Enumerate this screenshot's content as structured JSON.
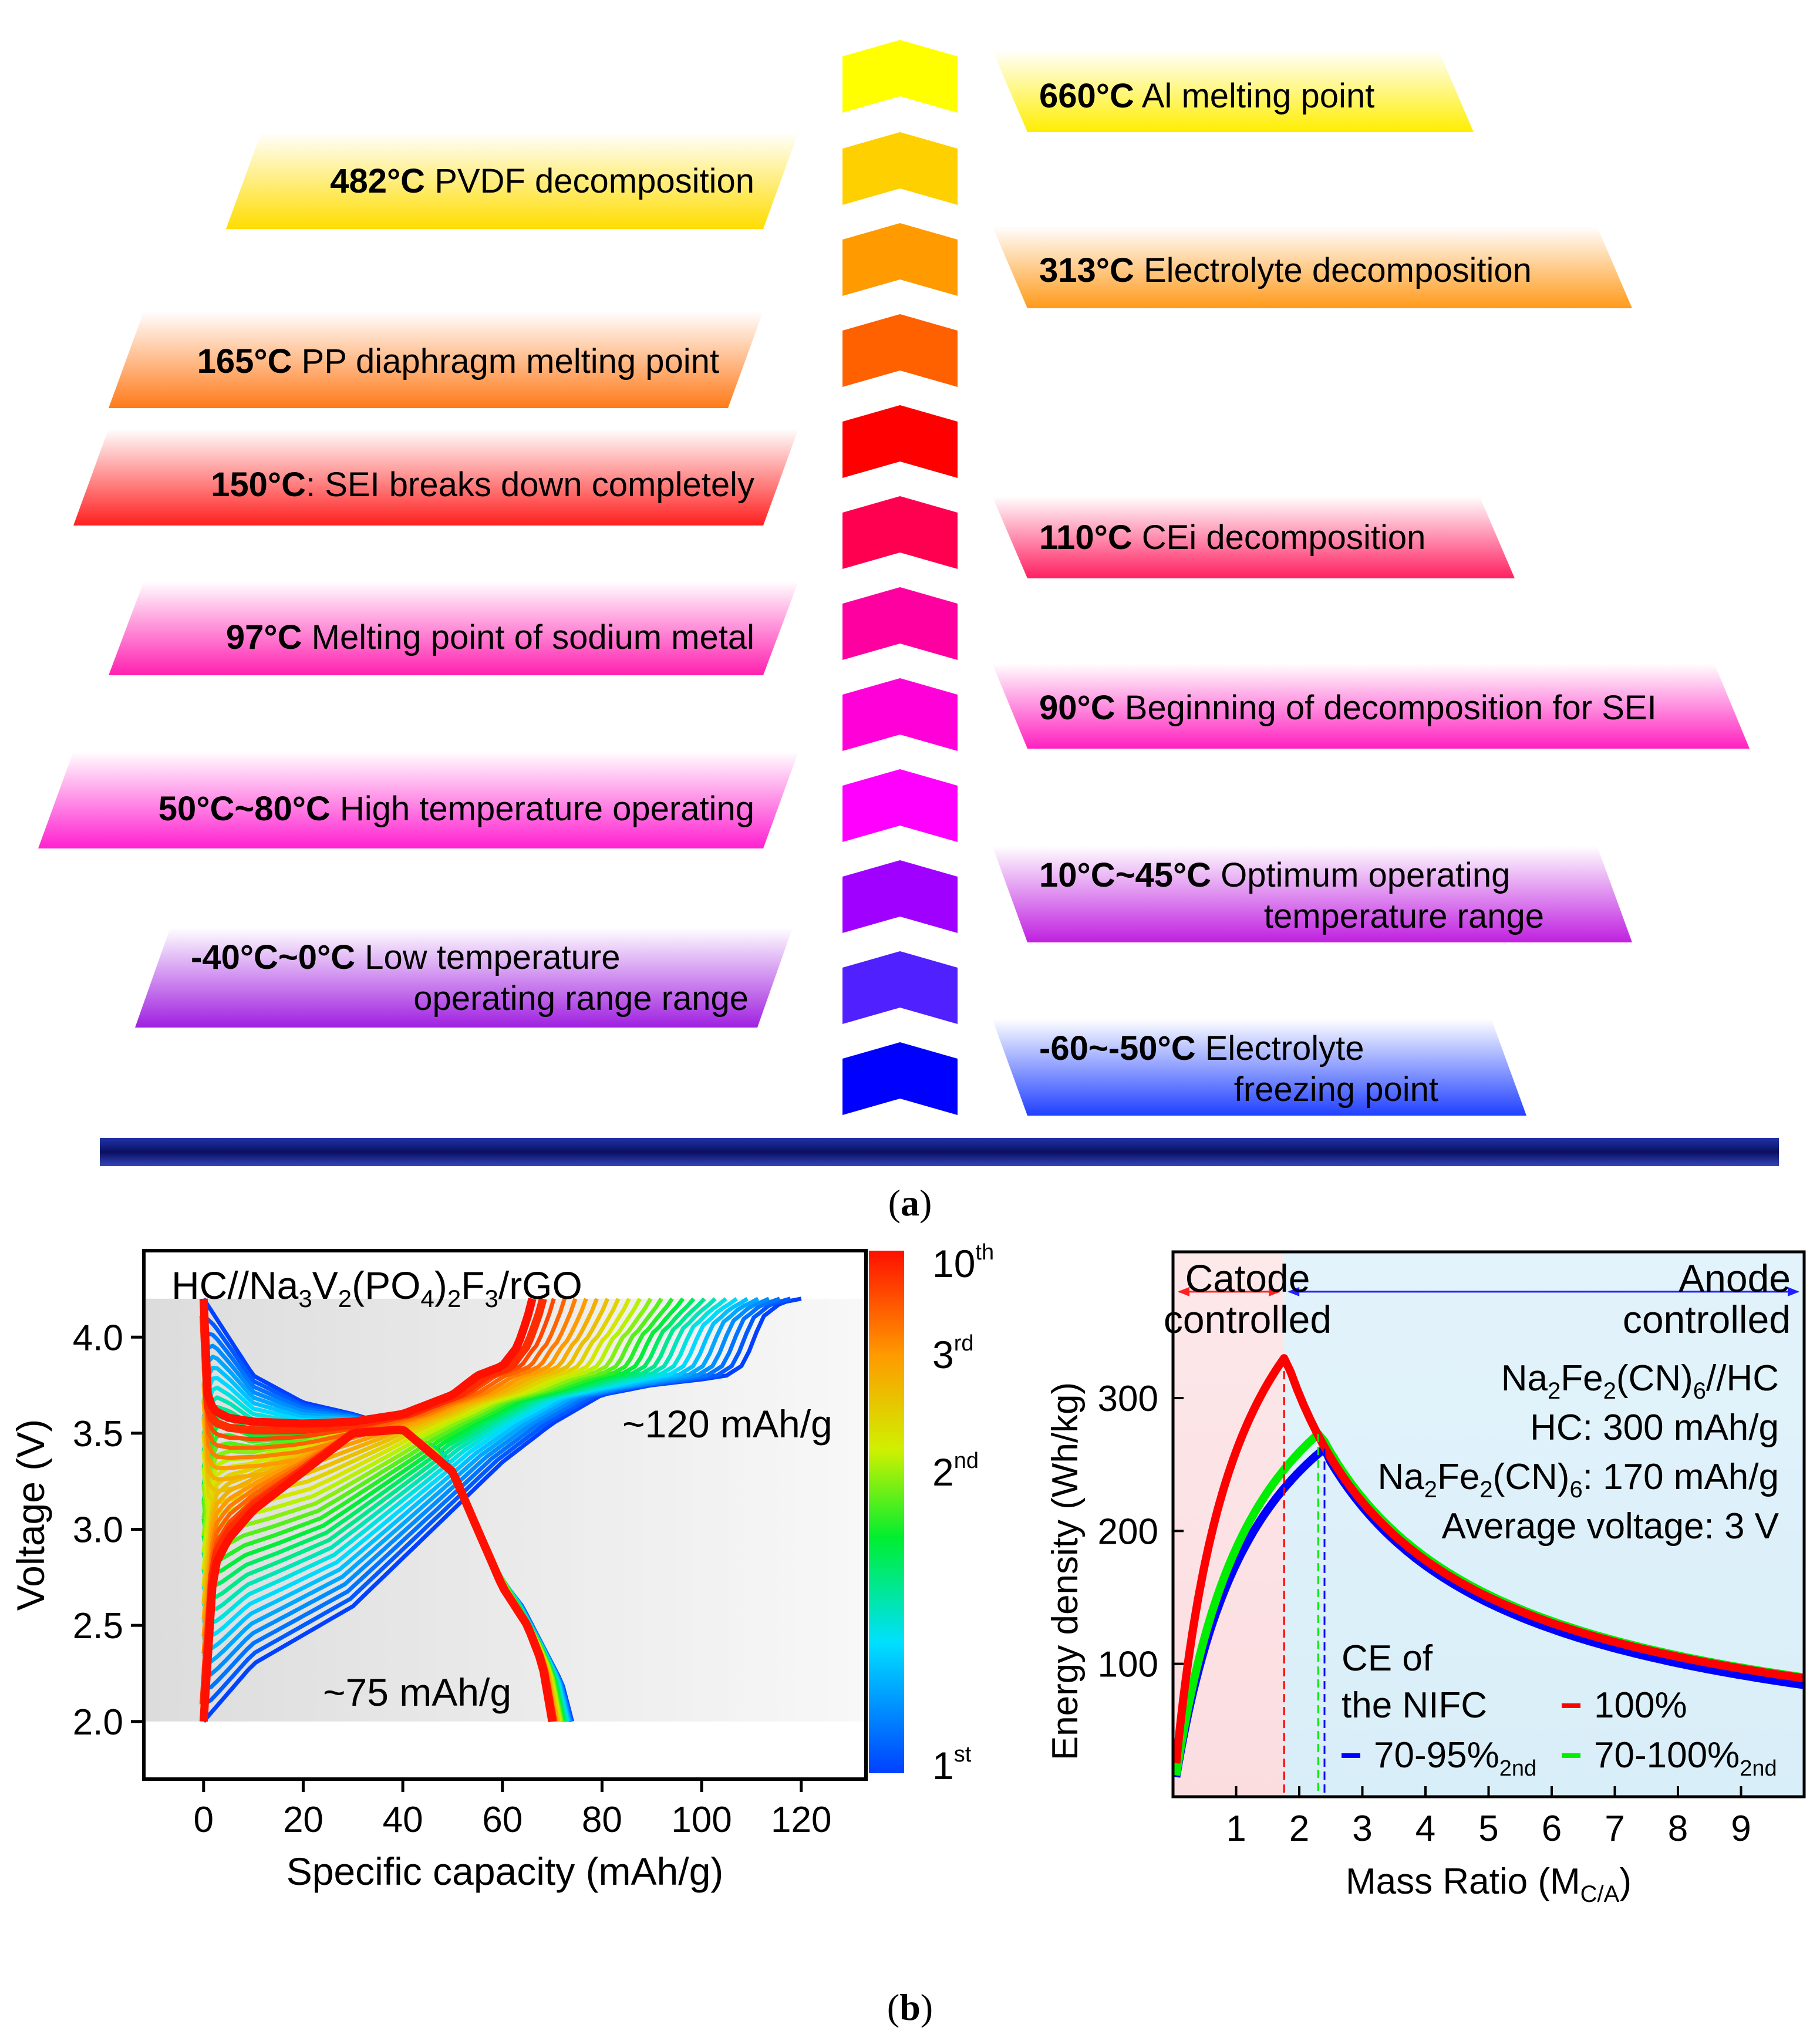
{
  "panel_a": {
    "left_labels": [
      {
        "temp": "482°C",
        "text": " PVDF decomposition",
        "color": "#ffdd00"
      },
      {
        "temp": "165°C",
        "text": " PP diaphragm melting point",
        "color": "#ff7a1a"
      },
      {
        "temp": "150°C",
        "text": ": SEI breaks down completely",
        "color": "#ff2020"
      },
      {
        "temp": "97°C",
        "text": " Melting point of sodium metal",
        "color": "#ff20b0"
      },
      {
        "temp": "50°C~80°C",
        "text": " High temperature operating",
        "color": "#ff20d0"
      },
      {
        "temp": "-40°C~0°C",
        "text": " Low temperature",
        "text2": "operating range range",
        "color": "#a020e0"
      }
    ],
    "right_labels": [
      {
        "temp": "660°C",
        "text": " Al melting point",
        "color": "#ffee00"
      },
      {
        "temp": "313°C",
        "text": " Electrolyte decomposition",
        "color": "#ff9a1a"
      },
      {
        "temp": "110°C",
        "text": " CEi decomposition",
        "color": "#ff2060"
      },
      {
        "temp": "90°C",
        "text": " Beginning of decomposition for SEI",
        "color": "#ff20c0"
      },
      {
        "temp": "10°C~45°C",
        "text": " Optimum operating",
        "text2": "temperature range",
        "color": "#c020e0"
      },
      {
        "temp": "-60~-50°C",
        "text": " Electrolyte",
        "text2": "freezing point",
        "color": "#2040ff"
      }
    ],
    "chevron_colors": [
      "#ffff00",
      "#ffd000",
      "#ff9a00",
      "#ff6000",
      "#ff0000",
      "#ff0050",
      "#ff00a0",
      "#ff00d8",
      "#ff00ff",
      "#a000ff",
      "#5020ff",
      "#0000ff"
    ],
    "caption": "(a)"
  },
  "panel_b_caption": "(b)",
  "chart_data": [
    {
      "type": "line",
      "title": "HC//Na3V2(PO4)2F3/rGO",
      "xlabel": "Specific capacity (mAh/g)",
      "ylabel": "Voltage (V)",
      "xlim": [
        -12,
        133
      ],
      "ylim": [
        1.7,
        4.45
      ],
      "xticks": [
        "0",
        "20",
        "40",
        "60",
        "80",
        "100",
        "120"
      ],
      "yticks": [
        "2.0",
        "2.5",
        "3.0",
        "3.5",
        "4.0"
      ],
      "colorbar_labels": [
        {
          "base": "10",
          "sup": "th"
        },
        {
          "base": "3",
          "sup": "rd"
        },
        {
          "base": "2",
          "sup": "nd"
        },
        {
          "base": "1",
          "sup": "st"
        }
      ],
      "annotations": [
        "~120 mAh/g",
        "~75 mAh/g"
      ],
      "series": [
        {
          "name": "1st charge",
          "x": [
            0,
            5,
            10,
            20,
            30,
            40,
            50,
            60,
            70,
            80,
            90,
            100,
            105,
            108,
            110,
            112,
            116,
            120
          ],
          "y": [
            2.0,
            2.15,
            2.3,
            2.45,
            2.6,
            2.85,
            3.1,
            3.35,
            3.55,
            3.7,
            3.75,
            3.78,
            3.8,
            3.85,
            3.95,
            4.1,
            4.18,
            4.2
          ]
        },
        {
          "name": "1st discharge",
          "x": [
            0,
            10,
            20,
            30,
            40,
            48,
            52,
            58,
            64,
            68,
            72,
            74
          ],
          "y": [
            4.2,
            3.8,
            3.66,
            3.6,
            3.52,
            3.4,
            3.2,
            2.8,
            2.6,
            2.4,
            2.2,
            2.0
          ]
        },
        {
          "name": "10th charge",
          "x": [
            0,
            0.5,
            1,
            2,
            5,
            10,
            20,
            30,
            40,
            50,
            55,
            60,
            63,
            65,
            66
          ],
          "y": [
            4.2,
            3.75,
            3.68,
            3.62,
            3.58,
            3.56,
            3.55,
            3.56,
            3.6,
            3.7,
            3.8,
            3.85,
            3.95,
            4.1,
            4.2
          ]
        },
        {
          "name": "10th discharge",
          "x": [
            0,
            2,
            5,
            10,
            20,
            30,
            40,
            50,
            55,
            60,
            65,
            68,
            70
          ],
          "y": [
            2.0,
            2.8,
            2.95,
            3.1,
            3.3,
            3.5,
            3.52,
            3.3,
            3.0,
            2.7,
            2.5,
            2.3,
            2.0
          ]
        }
      ]
    },
    {
      "type": "line",
      "xlabel": "Mass Ratio (M",
      "xlabel_sub": "C/A",
      "xlabel_end": ")",
      "ylabel": "Energy density (Wh/kg)",
      "xlim": [
        0,
        10
      ],
      "ylim": [
        0,
        410
      ],
      "xticks": [
        "1",
        "2",
        "3",
        "4",
        "5",
        "6",
        "7",
        "8",
        "9"
      ],
      "yticks": [
        "100",
        "200",
        "300"
      ],
      "regions": [
        {
          "label_line1": "Catode",
          "label_line2": "controlled",
          "color": "#ff0000"
        },
        {
          "label_line1": "Anode",
          "label_line2": "controlled",
          "color": "#0000ff"
        }
      ],
      "info": [
        "Na2Fe2(CN)6//HC",
        "HC: 300 mAh/g",
        "Na2Fe2(CN)6: 170 mAh/g",
        "Average voltage: 3 V"
      ],
      "legend_title": [
        "CE of",
        "the NIFC"
      ],
      "series": [
        {
          "name": "100%",
          "color": "#ff0000",
          "peak_x": 1.76,
          "peak_y": 330
        },
        {
          "name": "70-100%",
          "sub": "2nd",
          "color": "#00ee00",
          "peak_x": 2.3,
          "peak_y": 273
        },
        {
          "name": "70-95%",
          "sub": "2nd",
          "color": "#0000ff",
          "peak_x": 2.4,
          "peak_y": 262
        }
      ]
    }
  ]
}
